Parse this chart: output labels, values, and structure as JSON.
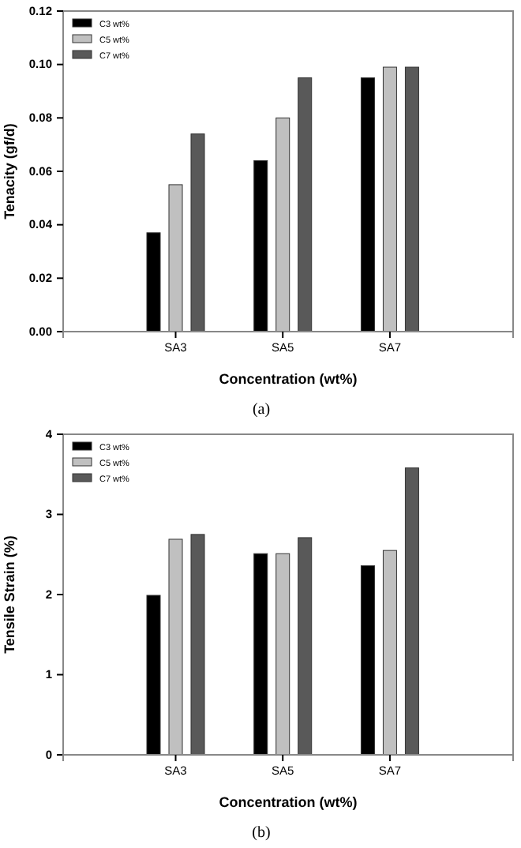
{
  "chart_data": [
    {
      "type": "bar",
      "xlabel": "Concentration (wt%)",
      "ylabel": "Tenacity (gf/d)",
      "categories": [
        "SA3",
        "SA5",
        "SA7"
      ],
      "series": [
        {
          "name": "C3 wt%",
          "color": "#000000",
          "values": [
            0.037,
            0.064,
            0.095
          ]
        },
        {
          "name": "C5 wt%",
          "color": "#c0c0c0",
          "values": [
            0.055,
            0.08,
            0.099
          ]
        },
        {
          "name": "C7 wt%",
          "color": "#595959",
          "values": [
            0.074,
            0.095,
            0.099
          ]
        }
      ],
      "ylim": [
        0,
        0.12
      ],
      "yticks": [
        {
          "value": 0,
          "label": "0.00"
        },
        {
          "value": 0.02,
          "label": "0.02"
        },
        {
          "value": 0.04,
          "label": "0.04"
        },
        {
          "value": 0.06,
          "label": "0.06"
        },
        {
          "value": 0.08,
          "label": "0.08"
        },
        {
          "value": 0.1,
          "label": "0.10"
        },
        {
          "value": 0.12,
          "label": "0.12"
        }
      ],
      "legend": "top left",
      "grid": false,
      "annotations": [
        "(a)"
      ]
    },
    {
      "type": "bar",
      "xlabel": "Concentration (wt%)",
      "ylabel": "Tensile Strain (%)",
      "categories": [
        "SA3",
        "SA5",
        "SA7"
      ],
      "series": [
        {
          "name": "C3 wt%",
          "color": "#000000",
          "values": [
            1.99,
            2.51,
            2.36
          ]
        },
        {
          "name": "C5 wt%",
          "color": "#c0c0c0",
          "values": [
            2.69,
            2.51,
            2.55
          ]
        },
        {
          "name": "C7 wt%",
          "color": "#595959",
          "values": [
            2.75,
            2.71,
            3.58
          ]
        }
      ],
      "ylim": [
        0,
        4
      ],
      "yticks": [
        0,
        1,
        2,
        3,
        4
      ],
      "legend": "top left",
      "grid": false,
      "annotations": [
        "(b)"
      ]
    }
  ]
}
